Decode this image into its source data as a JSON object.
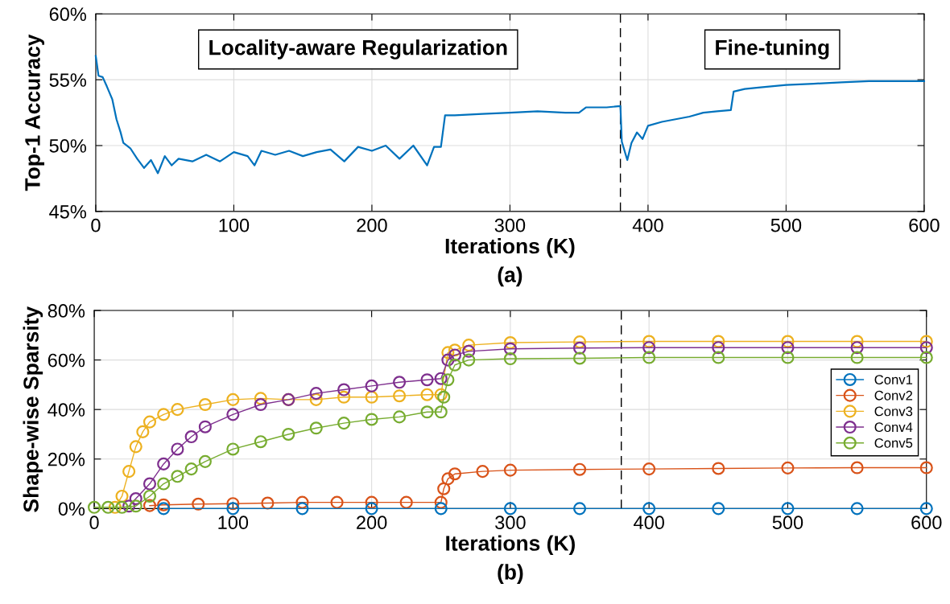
{
  "chart_data": [
    {
      "type": "line",
      "xlabel": "Iterations (K)",
      "ylabel": "Top-1 Accuracy",
      "xlim": [
        0,
        600
      ],
      "xticks": [
        0,
        100,
        200,
        300,
        400,
        500,
        600
      ],
      "ylim": [
        45,
        60
      ],
      "yticks": [
        {
          "value": 45,
          "label": "45%"
        },
        {
          "value": 50,
          "label": "50%"
        },
        {
          "value": 55,
          "label": "55%"
        },
        {
          "value": 60,
          "label": "60%"
        }
      ],
      "grid": true,
      "legend": false,
      "marker": "none",
      "line_style": "solid",
      "ref_lines": [
        {
          "axis": "x",
          "value": 380,
          "color": "#000000",
          "line_style": "dashed"
        }
      ],
      "annotations": [
        "Locality-aware Regularization",
        "Fine-tuning",
        "(a)"
      ],
      "series": [
        {
          "color": "#0072bd",
          "x": [
            0,
            2,
            5,
            8,
            12,
            15,
            18,
            20,
            25,
            30,
            35,
            40,
            45,
            50,
            55,
            60,
            70,
            80,
            90,
            100,
            110,
            115,
            120,
            130,
            140,
            150,
            160,
            170,
            180,
            190,
            200,
            210,
            220,
            230,
            240,
            245,
            250,
            253,
            260,
            280,
            300,
            320,
            340,
            350,
            355,
            370,
            380,
            381,
            385,
            388,
            392,
            396,
            400,
            410,
            420,
            430,
            440,
            450,
            460,
            462,
            470,
            480,
            500,
            520,
            540,
            560,
            580,
            600
          ],
          "values": [
            56.8,
            55.3,
            55.2,
            54.5,
            53.5,
            52,
            51,
            50.2,
            49.8,
            49.0,
            48.3,
            48.9,
            47.9,
            49.2,
            48.5,
            49.0,
            48.8,
            49.3,
            48.8,
            49.5,
            49.2,
            48.5,
            49.6,
            49.3,
            49.6,
            49.2,
            49.5,
            49.7,
            48.8,
            49.9,
            49.6,
            50.0,
            49.0,
            50.0,
            48.5,
            49.9,
            49.9,
            52.3,
            52.3,
            52.4,
            52.5,
            52.6,
            52.5,
            52.5,
            52.9,
            52.9,
            53.0,
            50.3,
            48.9,
            50.2,
            51.0,
            50.5,
            51.5,
            51.8,
            52.0,
            52.2,
            52.5,
            52.6,
            52.7,
            54.1,
            54.3,
            54.4,
            54.6,
            54.7,
            54.8,
            54.9,
            54.9,
            54.9
          ]
        }
      ]
    },
    {
      "type": "line",
      "xlabel": "Iterations (K)",
      "ylabel": "Shape-wise Sparsity",
      "xlim": [
        0,
        600
      ],
      "xticks": [
        0,
        100,
        200,
        300,
        400,
        500,
        600
      ],
      "ylim": [
        0,
        80
      ],
      "yticks": [
        {
          "value": 0,
          "label": "0%"
        },
        {
          "value": 20,
          "label": "20%"
        },
        {
          "value": 40,
          "label": "40%"
        },
        {
          "value": 60,
          "label": "60%"
        },
        {
          "value": 80,
          "label": "80%"
        }
      ],
      "grid": true,
      "legend": "right",
      "marker": "circle",
      "line_style": "solid",
      "ref_lines": [
        {
          "axis": "x",
          "value": 380,
          "color": "#000000",
          "line_style": "dashed"
        }
      ],
      "annotations": [
        "(b)"
      ],
      "series": [
        {
          "name": "Conv1",
          "color": "#0072bd",
          "x": [
            50,
            100,
            150,
            200,
            250,
            300,
            350,
            400,
            450,
            500,
            550,
            600
          ],
          "values": [
            0,
            0,
            0,
            0,
            0,
            0,
            0,
            0,
            0,
            0,
            0,
            0
          ]
        },
        {
          "name": "Conv2",
          "color": "#d95319",
          "x": [
            40,
            50,
            75,
            100,
            125,
            150,
            175,
            200,
            225,
            250,
            252,
            255,
            260,
            280,
            300,
            350,
            400,
            450,
            500,
            550,
            600
          ],
          "values": [
            1.2,
            1.5,
            1.8,
            2,
            2.2,
            2.5,
            2.5,
            2.5,
            2.5,
            2.5,
            8,
            12,
            14,
            15,
            15.5,
            15.8,
            16,
            16.2,
            16.4,
            16.5,
            16.5
          ]
        },
        {
          "name": "Conv3",
          "color": "#edb120",
          "x": [
            15,
            20,
            25,
            30,
            35,
            40,
            50,
            60,
            80,
            100,
            120,
            140,
            160,
            180,
            200,
            220,
            240,
            250,
            255,
            260,
            270,
            300,
            350,
            400,
            450,
            500,
            550,
            600
          ],
          "values": [
            0.5,
            5,
            15,
            25,
            31,
            35,
            38,
            40,
            42,
            44,
            44.5,
            44,
            44,
            45,
            45,
            45.5,
            46,
            46,
            63,
            64,
            66,
            67,
            67.3,
            67.5,
            67.5,
            67.5,
            67.5,
            67.5
          ]
        },
        {
          "name": "Conv4",
          "color": "#7e2f8e",
          "x": [
            25,
            30,
            40,
            50,
            60,
            70,
            80,
            100,
            120,
            140,
            160,
            180,
            200,
            220,
            240,
            250,
            255,
            260,
            270,
            300,
            350,
            400,
            450,
            500,
            550,
            600
          ],
          "values": [
            1,
            4,
            10,
            18,
            24,
            29,
            33,
            38,
            42,
            44,
            46.5,
            48,
            49.5,
            51,
            52,
            52.5,
            60,
            62,
            63.5,
            64.5,
            64.8,
            65,
            65,
            65,
            65,
            65
          ]
        },
        {
          "name": "Conv5",
          "color": "#77ac30",
          "x": [
            0,
            10,
            20,
            30,
            40,
            50,
            60,
            70,
            80,
            100,
            120,
            140,
            160,
            180,
            200,
            220,
            240,
            250,
            252,
            255,
            260,
            270,
            300,
            350,
            400,
            450,
            500,
            550,
            600
          ],
          "values": [
            0.5,
            0.5,
            0.5,
            1,
            5,
            10,
            13,
            16,
            19,
            24,
            27,
            30,
            32.5,
            34.5,
            36,
            37,
            39,
            39,
            45,
            52,
            58,
            60,
            60.5,
            60.7,
            61,
            61,
            61,
            61,
            61
          ]
        }
      ]
    }
  ]
}
